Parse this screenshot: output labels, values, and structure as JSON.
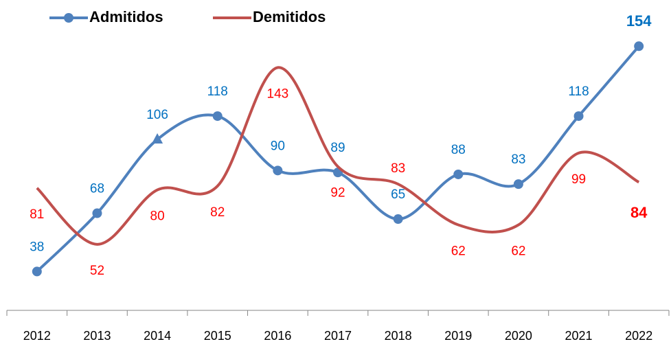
{
  "chart_data": {
    "type": "line",
    "categories": [
      "2012",
      "2013",
      "2014",
      "2015",
      "2016",
      "2017",
      "2018",
      "2019",
      "2020",
      "2021",
      "2022"
    ],
    "series": [
      {
        "name": "Admitidos",
        "color": "#4f81bd",
        "label_color": "#0070c0",
        "values": [
          38,
          68,
          106,
          118,
          90,
          89,
          65,
          88,
          83,
          118,
          154
        ]
      },
      {
        "name": "Demitidos",
        "color": "#c0504d",
        "label_color": "#ff0000",
        "values": [
          81,
          52,
          80,
          82,
          143,
          92,
          83,
          62,
          62,
          99,
          84
        ]
      }
    ],
    "ylim": [
      18,
      170
    ],
    "legend": "top-left"
  }
}
